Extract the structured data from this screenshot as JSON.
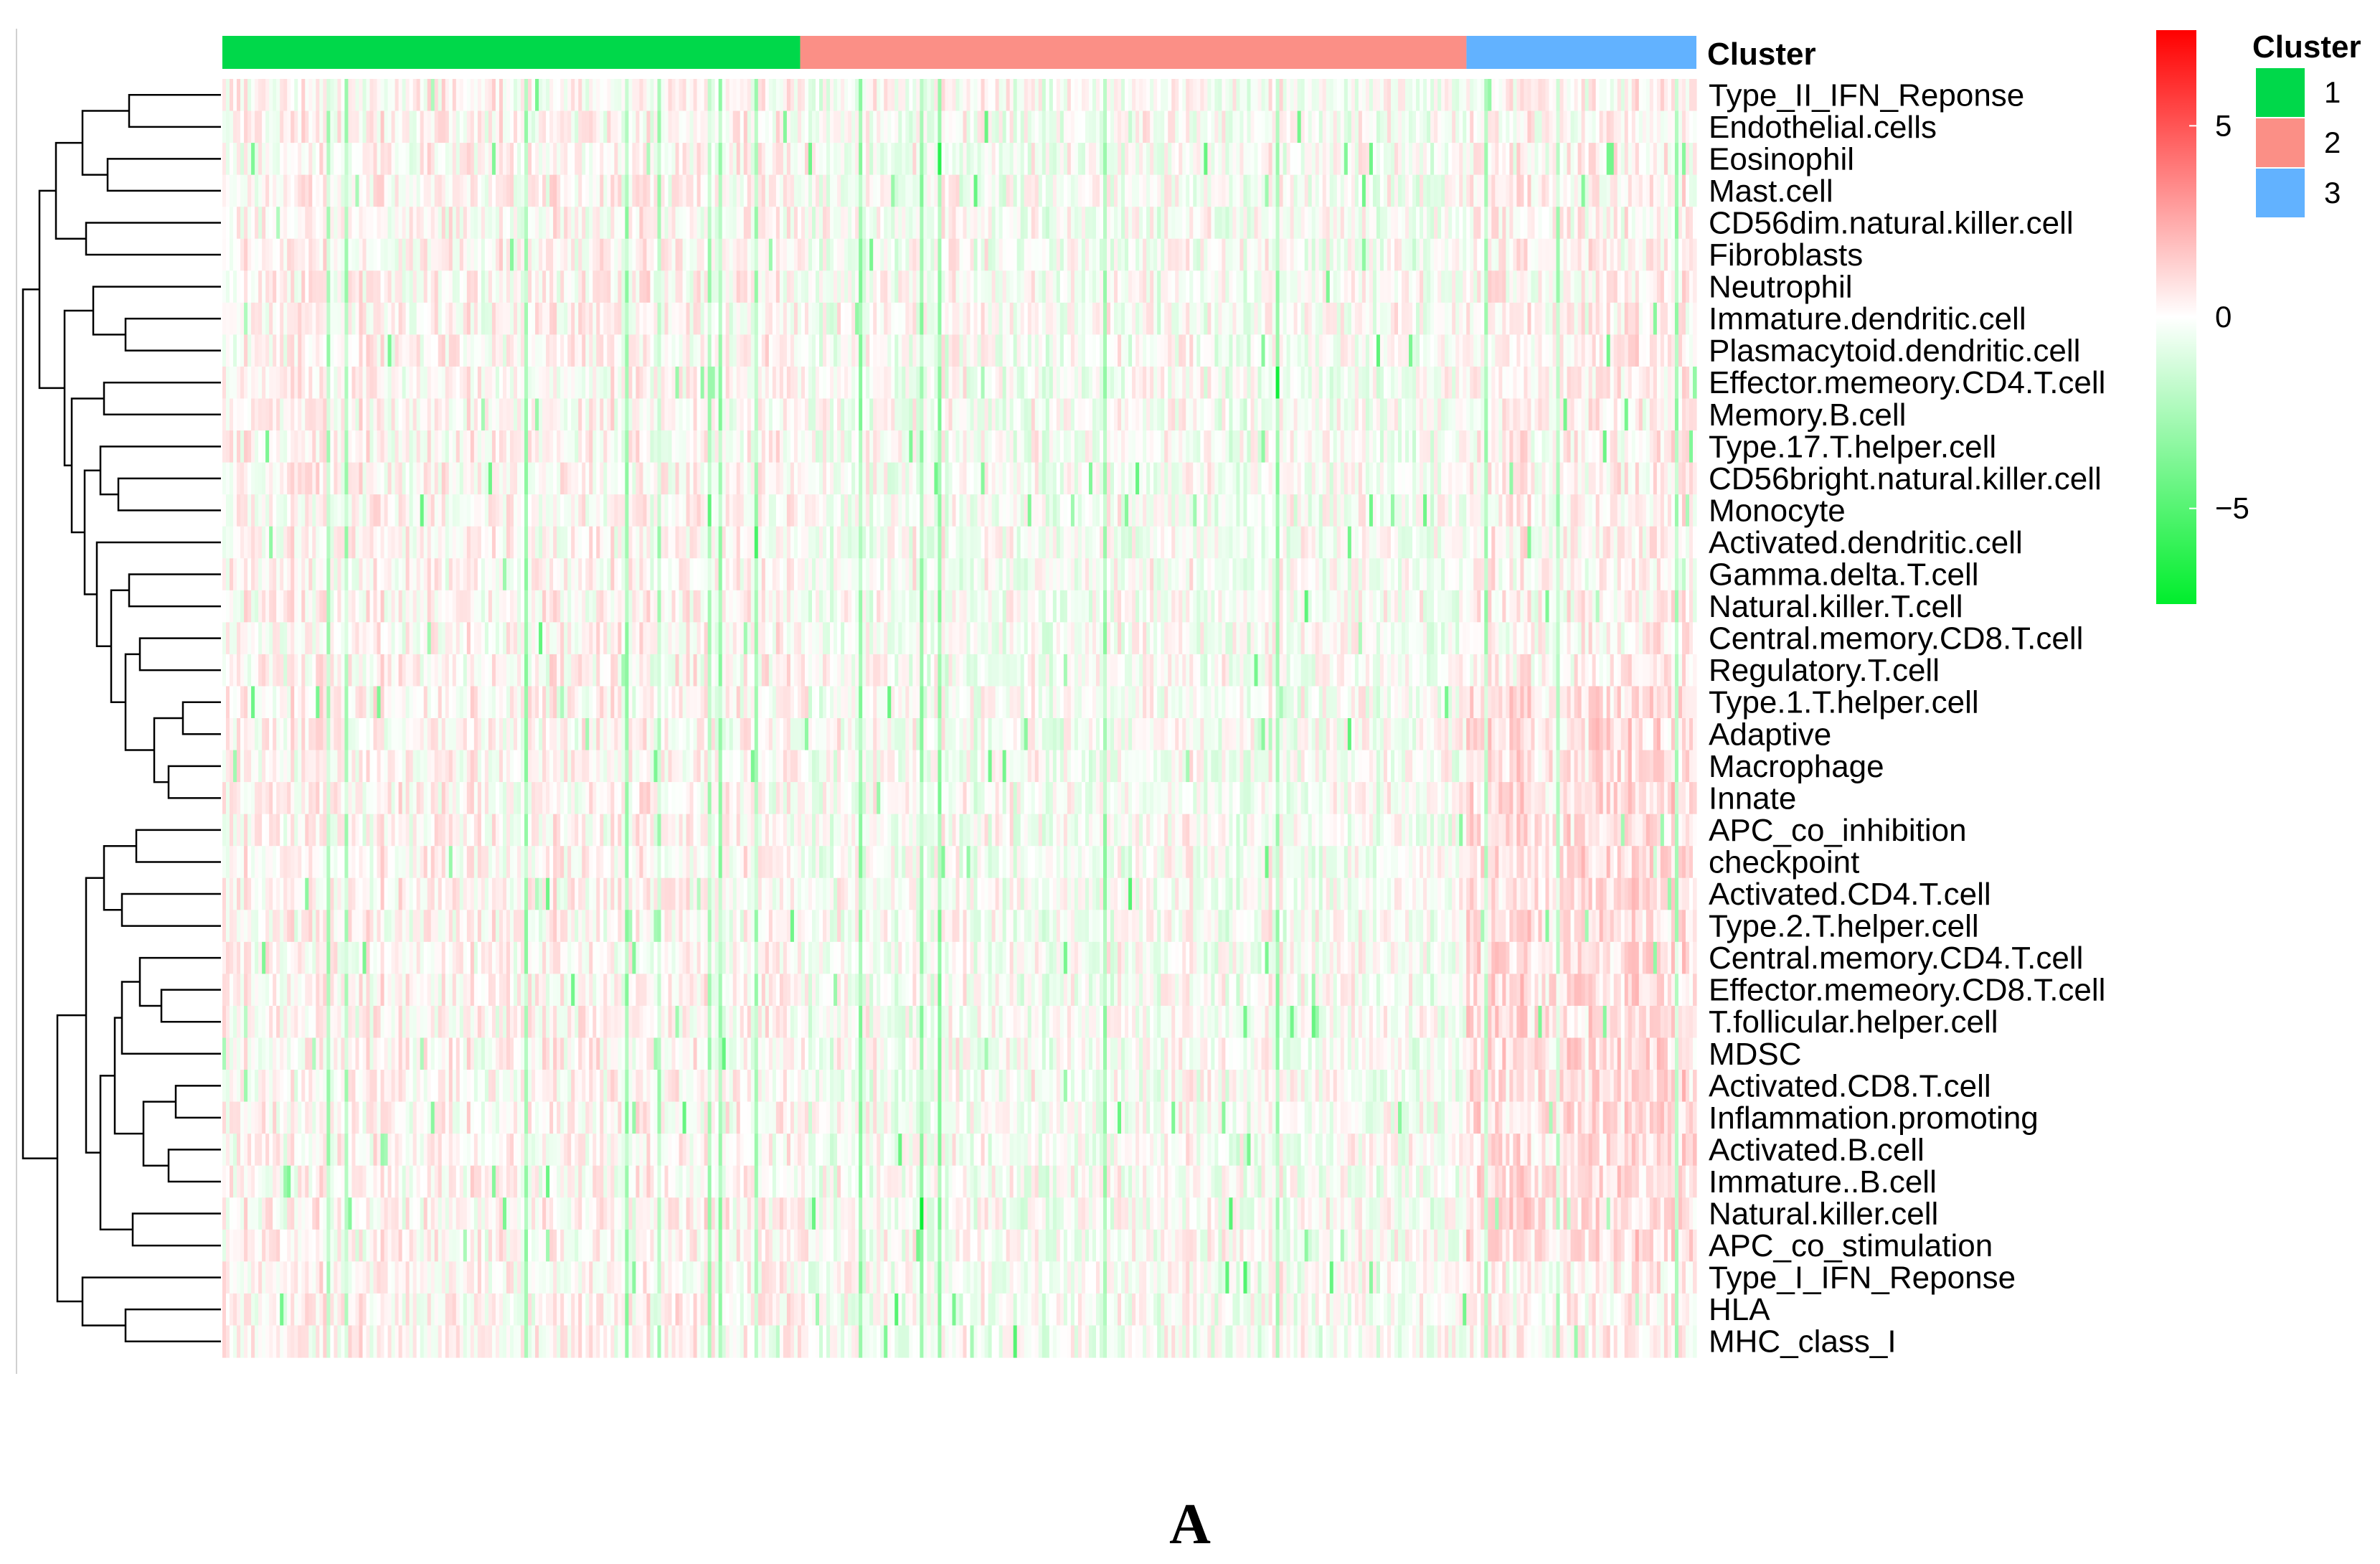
{
  "chart_data": {
    "type": "heatmap",
    "title": "",
    "xlabel": "",
    "ylabel": "",
    "rows": [
      "Type_II_IFN_Reponse",
      "Endothelial.cells",
      "Eosinophil",
      "Mast.cell",
      "CD56dim.natural.killer.cell",
      "Fibroblasts",
      "Neutrophil",
      "Immature.dendritic.cell",
      "Plasmacytoid.dendritic.cell",
      "Effector.memeory.CD4.T.cell",
      "Memory.B.cell",
      "Type.17.T.helper.cell",
      "CD56bright.natural.killer.cell",
      "Monocyte",
      "Activated.dendritic.cell",
      "Gamma.delta.T.cell",
      "Natural.killer.T.cell",
      "Central.memory.CD8.T.cell",
      "Regulatory.T.cell",
      "Type.1.T.helper.cell",
      "Adaptive",
      "Macrophage",
      "Innate",
      "APC_co_inhibition",
      "checkpoint",
      "Activated.CD4.T.cell",
      "Type.2.T.helper.cell",
      "Central.memory.CD4.T.cell",
      "Effector.memeory.CD8.T.cell",
      "T.follicular.helper.cell",
      "MDSC",
      "Activated.CD8.T.cell",
      "Inflammation.promoting",
      "Activated.B.cell",
      "Immature..B.cell",
      "Natural.killer.cell",
      "APC_co_stimulation",
      "Type_I_IFN_Reponse",
      "HLA",
      "MHC_class_I"
    ],
    "column_annotation": {
      "title": "Cluster",
      "groups": [
        {
          "name": "1",
          "color": "#00d84a",
          "fraction": 0.392
        },
        {
          "name": "2",
          "color": "#fb8f86",
          "fraction": 0.452
        },
        {
          "name": "3",
          "color": "#62b2ff",
          "fraction": 0.156
        }
      ]
    },
    "color_scale": {
      "min": -7.5,
      "max": 7.5,
      "ticks": [
        5,
        0,
        -5
      ],
      "low_color": "#00ee2c",
      "mid_color": "#ffffff",
      "high_color": "#ff0000"
    },
    "row_dendrogram": true,
    "legend_position": "right",
    "grid": false,
    "values_note": ""
  },
  "panel_label": "A"
}
